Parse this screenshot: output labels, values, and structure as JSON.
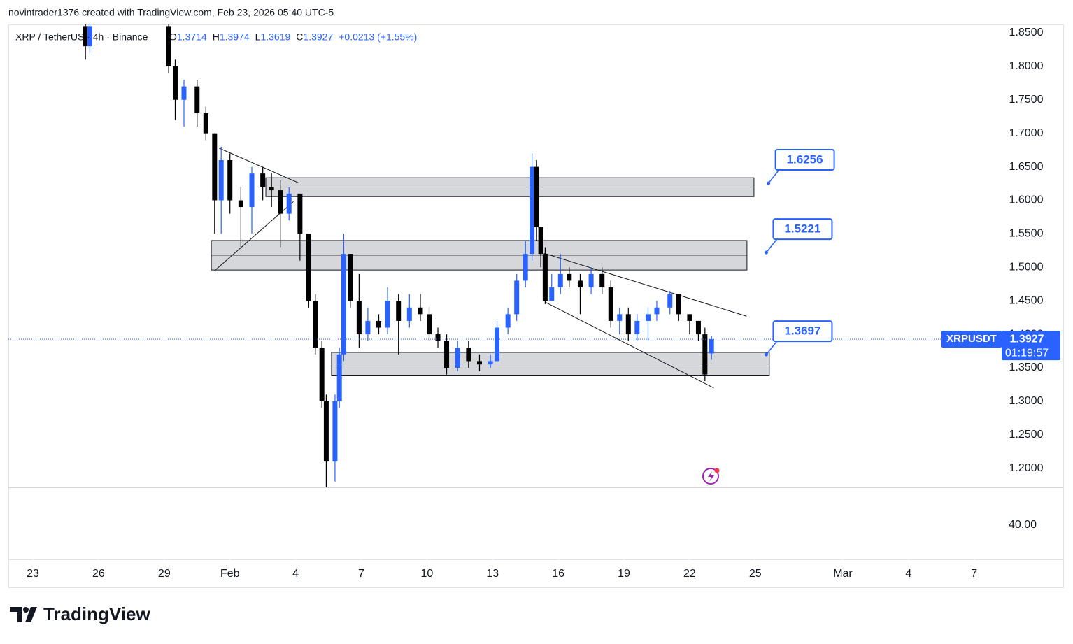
{
  "header": {
    "credit": "novintrader1376 created with TradingView.com, Feb 23, 2026 05:40 UTC-5",
    "symbol": "XRP / TetherUS · 4h · Binance",
    "ohlc_labels": [
      "O",
      "H",
      "L",
      "C"
    ],
    "change": "+0.0213 (+1.55%)"
  },
  "chart_data": {
    "type": "candlestick",
    "up_color": "#2962ff",
    "down_color": "#000000",
    "xlim": [
      -1.12,
      44.03
    ],
    "xticks": [
      {
        "value": 0,
        "label": "23"
      },
      {
        "value": 3,
        "label": "26"
      },
      {
        "value": 6,
        "label": "29"
      },
      {
        "value": 9,
        "label": "Feb"
      },
      {
        "value": 12,
        "label": "4"
      },
      {
        "value": 15,
        "label": "7"
      },
      {
        "value": 18,
        "label": "10"
      },
      {
        "value": 21,
        "label": "13"
      },
      {
        "value": 24,
        "label": "16"
      },
      {
        "value": 27,
        "label": "19"
      },
      {
        "value": 30,
        "label": "22"
      },
      {
        "value": 33,
        "label": "25"
      },
      {
        "value": 37,
        "label": "Mar"
      },
      {
        "value": 40,
        "label": "4"
      },
      {
        "value": 43,
        "label": "7"
      }
    ],
    "ylim": [
      1.1715,
      1.8625
    ],
    "yticks": [
      {
        "value": 1.2,
        "label": "1.2000"
      },
      {
        "value": 1.25,
        "label": "1.2500"
      },
      {
        "value": 1.3,
        "label": "1.3000"
      },
      {
        "value": 1.35,
        "label": "1.3500"
      },
      {
        "value": 1.4,
        "label": "1.4000"
      },
      {
        "value": 1.45,
        "label": "1.4500"
      },
      {
        "value": 1.5,
        "label": "1.5000"
      },
      {
        "value": 1.55,
        "label": "1.5500"
      },
      {
        "value": 1.6,
        "label": "1.6000"
      },
      {
        "value": 1.65,
        "label": "1.6500"
      },
      {
        "value": 1.7,
        "label": "1.7000"
      },
      {
        "value": 1.75,
        "label": "1.7500"
      },
      {
        "value": 1.8,
        "label": "1.8000"
      },
      {
        "value": 1.85,
        "label": "1.8500"
      }
    ],
    "volume_tick": "40.00",
    "candles": [
      {
        "x": 2.4,
        "open": 1.86,
        "high": 1.87,
        "low": 1.81,
        "close": 1.83
      },
      {
        "x": 2.6,
        "open": 1.83,
        "high": 1.87,
        "low": 1.82,
        "close": 1.86
      },
      {
        "x": 6.2,
        "open": 1.86,
        "high": 1.87,
        "low": 1.79,
        "close": 1.8
      },
      {
        "x": 6.5,
        "open": 1.8,
        "high": 1.81,
        "low": 1.72,
        "close": 1.75
      },
      {
        "x": 6.9,
        "open": 1.75,
        "high": 1.78,
        "low": 1.71,
        "close": 1.77
      },
      {
        "x": 7.5,
        "open": 1.77,
        "high": 1.78,
        "low": 1.71,
        "close": 1.73
      },
      {
        "x": 7.9,
        "open": 1.73,
        "high": 1.74,
        "low": 1.69,
        "close": 1.7
      },
      {
        "x": 8.3,
        "open": 1.7,
        "high": 1.7,
        "low": 1.55,
        "close": 1.6
      },
      {
        "x": 8.6,
        "open": 1.6,
        "high": 1.68,
        "low": 1.55,
        "close": 1.66
      },
      {
        "x": 9.0,
        "open": 1.66,
        "high": 1.67,
        "low": 1.58,
        "close": 1.6
      },
      {
        "x": 9.5,
        "open": 1.6,
        "high": 1.62,
        "low": 1.53,
        "close": 1.59
      },
      {
        "x": 10.0,
        "open": 1.59,
        "high": 1.65,
        "low": 1.55,
        "close": 1.64
      },
      {
        "x": 10.5,
        "open": 1.64,
        "high": 1.65,
        "low": 1.6,
        "close": 1.62
      },
      {
        "x": 10.9,
        "open": 1.62,
        "high": 1.64,
        "low": 1.59,
        "close": 1.615
      },
      {
        "x": 11.3,
        "open": 1.615,
        "high": 1.63,
        "low": 1.53,
        "close": 1.58
      },
      {
        "x": 11.7,
        "open": 1.58,
        "high": 1.62,
        "low": 1.57,
        "close": 1.61
      },
      {
        "x": 12.2,
        "open": 1.61,
        "high": 1.61,
        "low": 1.51,
        "close": 1.55
      },
      {
        "x": 12.6,
        "open": 1.55,
        "high": 1.55,
        "low": 1.44,
        "close": 1.45
      },
      {
        "x": 12.9,
        "open": 1.45,
        "high": 1.46,
        "low": 1.37,
        "close": 1.38
      },
      {
        "x": 13.2,
        "open": 1.38,
        "high": 1.39,
        "low": 1.29,
        "close": 1.3
      },
      {
        "x": 13.4,
        "open": 1.3,
        "high": 1.31,
        "low": 1.17,
        "close": 1.21
      },
      {
        "x": 13.8,
        "open": 1.21,
        "high": 1.31,
        "low": 1.18,
        "close": 1.3
      },
      {
        "x": 14.0,
        "open": 1.3,
        "high": 1.38,
        "low": 1.29,
        "close": 1.37
      },
      {
        "x": 14.2,
        "open": 1.37,
        "high": 1.55,
        "low": 1.36,
        "close": 1.52
      },
      {
        "x": 14.5,
        "open": 1.52,
        "high": 1.52,
        "low": 1.44,
        "close": 1.45
      },
      {
        "x": 14.9,
        "open": 1.45,
        "high": 1.49,
        "low": 1.38,
        "close": 1.4
      },
      {
        "x": 15.3,
        "open": 1.4,
        "high": 1.44,
        "low": 1.39,
        "close": 1.42
      },
      {
        "x": 15.8,
        "open": 1.42,
        "high": 1.43,
        "low": 1.4,
        "close": 1.41
      },
      {
        "x": 16.2,
        "open": 1.41,
        "high": 1.47,
        "low": 1.4,
        "close": 1.45
      },
      {
        "x": 16.7,
        "open": 1.45,
        "high": 1.46,
        "low": 1.37,
        "close": 1.42
      },
      {
        "x": 17.2,
        "open": 1.42,
        "high": 1.46,
        "low": 1.41,
        "close": 1.44
      },
      {
        "x": 17.7,
        "open": 1.44,
        "high": 1.46,
        "low": 1.42,
        "close": 1.43
      },
      {
        "x": 18.1,
        "open": 1.43,
        "high": 1.44,
        "low": 1.39,
        "close": 1.4
      },
      {
        "x": 18.5,
        "open": 1.4,
        "high": 1.41,
        "low": 1.38,
        "close": 1.39
      },
      {
        "x": 18.9,
        "open": 1.39,
        "high": 1.4,
        "low": 1.34,
        "close": 1.35
      },
      {
        "x": 19.4,
        "open": 1.35,
        "high": 1.39,
        "low": 1.345,
        "close": 1.38
      },
      {
        "x": 19.9,
        "open": 1.38,
        "high": 1.39,
        "low": 1.35,
        "close": 1.36
      },
      {
        "x": 20.4,
        "open": 1.36,
        "high": 1.37,
        "low": 1.345,
        "close": 1.355
      },
      {
        "x": 20.9,
        "open": 1.355,
        "high": 1.37,
        "low": 1.35,
        "close": 1.36
      },
      {
        "x": 21.2,
        "open": 1.36,
        "high": 1.42,
        "low": 1.36,
        "close": 1.41
      },
      {
        "x": 21.7,
        "open": 1.41,
        "high": 1.44,
        "low": 1.4,
        "close": 1.43
      },
      {
        "x": 22.1,
        "open": 1.43,
        "high": 1.49,
        "low": 1.42,
        "close": 1.48
      },
      {
        "x": 22.5,
        "open": 1.48,
        "high": 1.54,
        "low": 1.47,
        "close": 1.52
      },
      {
        "x": 22.8,
        "open": 1.52,
        "high": 1.67,
        "low": 1.51,
        "close": 1.65
      },
      {
        "x": 23.0,
        "open": 1.65,
        "high": 1.66,
        "low": 1.54,
        "close": 1.56
      },
      {
        "x": 23.2,
        "open": 1.56,
        "high": 1.56,
        "low": 1.5,
        "close": 1.52
      },
      {
        "x": 23.4,
        "open": 1.52,
        "high": 1.53,
        "low": 1.445,
        "close": 1.45
      },
      {
        "x": 23.7,
        "open": 1.45,
        "high": 1.49,
        "low": 1.45,
        "close": 1.47
      },
      {
        "x": 24.1,
        "open": 1.47,
        "high": 1.52,
        "low": 1.46,
        "close": 1.49
      },
      {
        "x": 24.5,
        "open": 1.49,
        "high": 1.5,
        "low": 1.47,
        "close": 1.48
      },
      {
        "x": 25.0,
        "open": 1.48,
        "high": 1.49,
        "low": 1.43,
        "close": 1.47
      },
      {
        "x": 25.5,
        "open": 1.47,
        "high": 1.5,
        "low": 1.46,
        "close": 1.49
      },
      {
        "x": 26.0,
        "open": 1.49,
        "high": 1.5,
        "low": 1.46,
        "close": 1.47
      },
      {
        "x": 26.4,
        "open": 1.47,
        "high": 1.48,
        "low": 1.41,
        "close": 1.42
      },
      {
        "x": 26.8,
        "open": 1.42,
        "high": 1.44,
        "low": 1.4,
        "close": 1.43
      },
      {
        "x": 27.2,
        "open": 1.43,
        "high": 1.44,
        "low": 1.39,
        "close": 1.4
      },
      {
        "x": 27.6,
        "open": 1.4,
        "high": 1.43,
        "low": 1.39,
        "close": 1.42
      },
      {
        "x": 28.1,
        "open": 1.42,
        "high": 1.44,
        "low": 1.39,
        "close": 1.43
      },
      {
        "x": 28.5,
        "open": 1.43,
        "high": 1.45,
        "low": 1.42,
        "close": 1.44
      },
      {
        "x": 29.1,
        "open": 1.44,
        "high": 1.465,
        "low": 1.43,
        "close": 1.46
      },
      {
        "x": 29.5,
        "open": 1.46,
        "high": 1.46,
        "low": 1.42,
        "close": 1.43
      },
      {
        "x": 30.0,
        "open": 1.43,
        "high": 1.43,
        "low": 1.4,
        "close": 1.42
      },
      {
        "x": 30.4,
        "open": 1.42,
        "high": 1.42,
        "low": 1.39,
        "close": 1.4
      },
      {
        "x": 30.7,
        "open": 1.4,
        "high": 1.41,
        "low": 1.33,
        "close": 1.34
      },
      {
        "x": 31.0,
        "open": 1.3714,
        "high": 1.3974,
        "low": 1.3619,
        "close": 1.3927
      }
    ],
    "zones": [
      {
        "x0": 10.64,
        "x1": 32.94,
        "top": 1.6337,
        "bottom": 1.6055
      },
      {
        "x0": 8.15,
        "x1": 32.62,
        "top": 1.54,
        "bottom": 1.496
      },
      {
        "x0": 13.64,
        "x1": 33.64,
        "top": 1.373,
        "bottom": 1.338
      }
    ],
    "trendlines": [
      {
        "x": [
          8.5,
          12.14
        ],
        "y": [
          1.678,
          1.626
        ]
      },
      {
        "x": [
          8.3,
          11.9
        ],
        "y": [
          1.495,
          1.598
        ]
      },
      {
        "x": [
          23.35,
          32.6
        ],
        "y": [
          1.521,
          1.427
        ]
      },
      {
        "x": [
          23.4,
          31.1
        ],
        "y": [
          1.448,
          1.32
        ]
      }
    ],
    "levels": [
      {
        "x": 33.6,
        "value": 1.6256
      },
      {
        "x": 33.5,
        "value": 1.5221
      },
      {
        "x": 33.5,
        "value": 1.3697
      }
    ],
    "price_tag": {
      "symbol": "XRPUSDT",
      "timer": "01:19:57"
    }
  },
  "footer": {
    "brand": "TradingView"
  }
}
